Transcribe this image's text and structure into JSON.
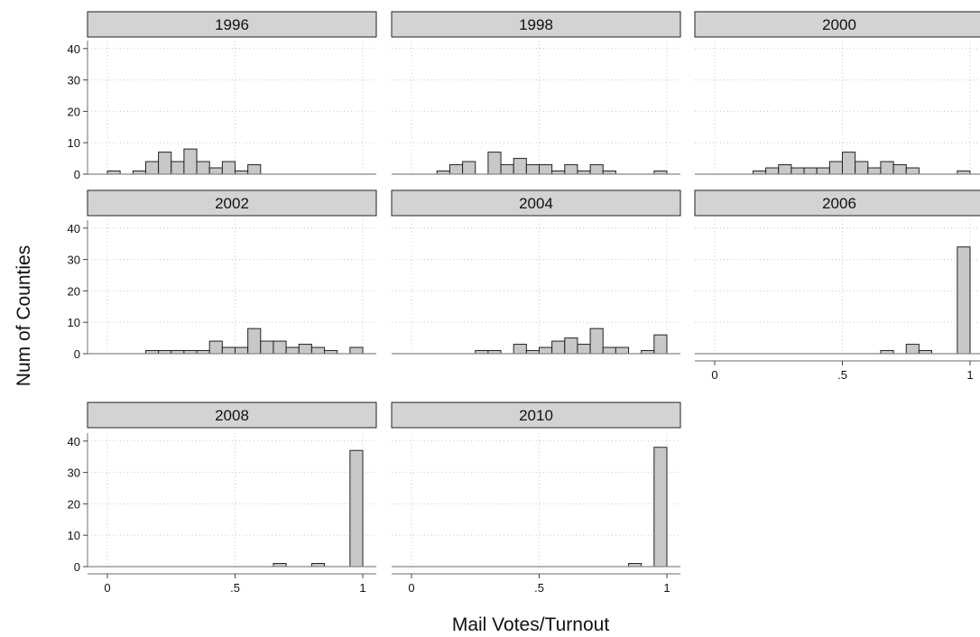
{
  "chart_data": {
    "type": "bar",
    "xlabel": "Mail Votes/Turnout",
    "ylabel": "Num of Counties",
    "xlim": [
      0,
      1
    ],
    "ylim": [
      0,
      40
    ],
    "x_ticks": [
      {
        "value": 0,
        "label": "0"
      },
      {
        "value": 0.5,
        "label": ".5"
      },
      {
        "value": 1,
        "label": "1"
      }
    ],
    "y_ticks": [
      {
        "value": 0,
        "label": "0"
      },
      {
        "value": 10,
        "label": "10"
      },
      {
        "value": 20,
        "label": "20"
      },
      {
        "value": 30,
        "label": "30"
      },
      {
        "value": 40,
        "label": "40"
      }
    ],
    "bin_width": 0.05,
    "grid": true,
    "panels": [
      {
        "title": "1996",
        "bins": [
          [
            0,
            1
          ],
          [
            0.1,
            1
          ],
          [
            0.15,
            4
          ],
          [
            0.2,
            7
          ],
          [
            0.25,
            4
          ],
          [
            0.3,
            8
          ],
          [
            0.35,
            4
          ],
          [
            0.4,
            2
          ],
          [
            0.45,
            4
          ],
          [
            0.5,
            1
          ],
          [
            0.55,
            3
          ]
        ]
      },
      {
        "title": "1998",
        "bins": [
          [
            0.1,
            1
          ],
          [
            0.15,
            3
          ],
          [
            0.2,
            4
          ],
          [
            0.3,
            7
          ],
          [
            0.35,
            3
          ],
          [
            0.4,
            5
          ],
          [
            0.45,
            3
          ],
          [
            0.5,
            3
          ],
          [
            0.55,
            1
          ],
          [
            0.6,
            3
          ],
          [
            0.65,
            1
          ],
          [
            0.7,
            3
          ],
          [
            0.75,
            1
          ],
          [
            0.95,
            1
          ]
        ]
      },
      {
        "title": "2000",
        "bins": [
          [
            0.15,
            1
          ],
          [
            0.2,
            2
          ],
          [
            0.25,
            3
          ],
          [
            0.3,
            2
          ],
          [
            0.35,
            2
          ],
          [
            0.4,
            2
          ],
          [
            0.45,
            4
          ],
          [
            0.5,
            7
          ],
          [
            0.55,
            4
          ],
          [
            0.6,
            2
          ],
          [
            0.65,
            4
          ],
          [
            0.7,
            3
          ],
          [
            0.75,
            2
          ],
          [
            0.95,
            1
          ]
        ]
      },
      {
        "title": "2002",
        "bins": [
          [
            0.15,
            1
          ],
          [
            0.2,
            1
          ],
          [
            0.25,
            1
          ],
          [
            0.3,
            1
          ],
          [
            0.35,
            1
          ],
          [
            0.4,
            4
          ],
          [
            0.45,
            2
          ],
          [
            0.5,
            2
          ],
          [
            0.55,
            8
          ],
          [
            0.6,
            4
          ],
          [
            0.65,
            4
          ],
          [
            0.7,
            2
          ],
          [
            0.75,
            3
          ],
          [
            0.8,
            2
          ],
          [
            0.85,
            1
          ],
          [
            0.95,
            2
          ]
        ]
      },
      {
        "title": "2004",
        "bins": [
          [
            0.25,
            1
          ],
          [
            0.3,
            1
          ],
          [
            0.4,
            3
          ],
          [
            0.45,
            1
          ],
          [
            0.5,
            2
          ],
          [
            0.55,
            4
          ],
          [
            0.6,
            5
          ],
          [
            0.65,
            3
          ],
          [
            0.7,
            8
          ],
          [
            0.75,
            2
          ],
          [
            0.8,
            2
          ],
          [
            0.9,
            1
          ],
          [
            0.95,
            6
          ]
        ]
      },
      {
        "title": "2006",
        "bins": [
          [
            0.65,
            1
          ],
          [
            0.75,
            3
          ],
          [
            0.8,
            1
          ],
          [
            0.95,
            34
          ]
        ]
      },
      {
        "title": "2008",
        "bins": [
          [
            0.65,
            1
          ],
          [
            0.8,
            1
          ],
          [
            0.95,
            37
          ]
        ]
      },
      {
        "title": "2010",
        "bins": [
          [
            0.85,
            1
          ],
          [
            0.95,
            38
          ]
        ]
      }
    ]
  }
}
